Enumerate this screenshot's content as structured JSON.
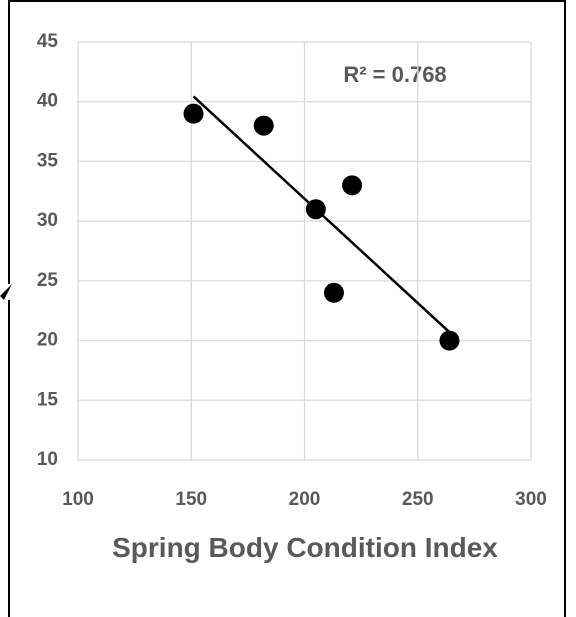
{
  "chart_data": {
    "type": "scatter",
    "x_label": "Spring Body Condition Index",
    "annotation": "R² = 0.768",
    "x": [
      151,
      182,
      205,
      221,
      213,
      264
    ],
    "values": [
      39,
      38,
      31,
      33,
      24,
      20
    ],
    "color": "#000000",
    "trendline": true,
    "xlim": [
      100,
      300
    ],
    "xticks": [
      100,
      150,
      200,
      250,
      300
    ],
    "ylim": [
      10,
      45
    ],
    "yticks": [
      10,
      15,
      20,
      25,
      30,
      35,
      40,
      45
    ],
    "grid": true
  }
}
